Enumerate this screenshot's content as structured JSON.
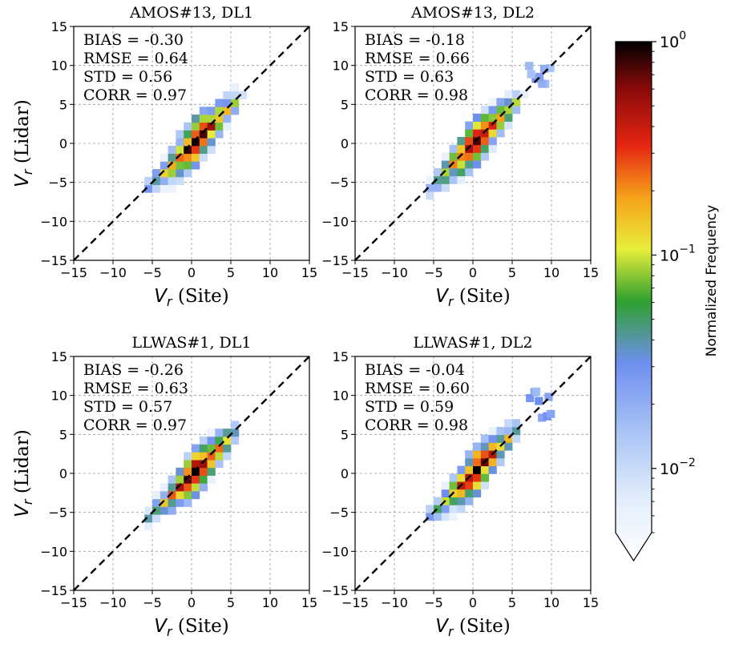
{
  "chart_data": [
    {
      "type": "heatmap",
      "title": "AMOS#13, DL1",
      "xlabel_var": "V",
      "xlabel_sub": "r",
      "xlabel_text": "(Site)",
      "ylabel_var": "V",
      "ylabel_sub": "r",
      "ylabel_text": "(Lidar)",
      "xlim": [
        -15,
        15
      ],
      "ylim": [
        -15,
        15
      ],
      "ticks": [
        -15,
        -10,
        -5,
        0,
        5,
        10,
        15
      ],
      "tick_labels": [
        "−15",
        "−10",
        "−5",
        "0",
        "5",
        "10",
        "15"
      ],
      "stats": [
        "BIAS = -0.30",
        "RMSE = 0.64",
        "STD = 0.56",
        "CORR = 0.97"
      ],
      "reference_line": "y = x",
      "density": {
        "x_range": [
          -6,
          7
        ],
        "bias": -0.3,
        "spread": 0.6
      }
    },
    {
      "type": "heatmap",
      "title": "AMOS#13, DL2",
      "xlabel_var": "V",
      "xlabel_sub": "r",
      "xlabel_text": "(Site)",
      "ylabel_var": "V",
      "ylabel_sub": "r",
      "ylabel_text": "(Lidar)",
      "xlim": [
        -15,
        15
      ],
      "ylim": [
        -15,
        15
      ],
      "ticks": [
        -15,
        -10,
        -5,
        0,
        5,
        10,
        15
      ],
      "tick_labels": [
        "−15",
        "−10",
        "−5",
        "0",
        "5",
        "10",
        "15"
      ],
      "stats": [
        "BIAS = -0.18",
        "RMSE = 0.66",
        "STD = 0.63",
        "CORR = 0.98"
      ],
      "reference_line": "y = x",
      "density": {
        "x_range": [
          -6,
          10
        ],
        "bias": -0.18,
        "spread": 0.65
      }
    },
    {
      "type": "heatmap",
      "title": "LLWAS#1, DL1",
      "xlabel_var": "V",
      "xlabel_sub": "r",
      "xlabel_text": "(Site)",
      "ylabel_var": "V",
      "ylabel_sub": "r",
      "ylabel_text": "(Lidar)",
      "xlim": [
        -15,
        15
      ],
      "ylim": [
        -15,
        15
      ],
      "ticks": [
        -15,
        -10,
        -5,
        0,
        5,
        10,
        15
      ],
      "tick_labels": [
        "−15",
        "−10",
        "−5",
        "0",
        "5",
        "10",
        "15"
      ],
      "stats": [
        "BIAS = -0.26",
        "RMSE = 0.63",
        "STD = 0.57",
        "CORR = 0.97"
      ],
      "reference_line": "y = x",
      "density": {
        "x_range": [
          -6,
          7
        ],
        "bias": -0.26,
        "spread": 0.6
      }
    },
    {
      "type": "heatmap",
      "title": "LLWAS#1, DL2",
      "xlabel_var": "V",
      "xlabel_sub": "r",
      "xlabel_text": "(Site)",
      "ylabel_var": "V",
      "ylabel_sub": "r",
      "ylabel_text": "(Lidar)",
      "xlim": [
        -15,
        15
      ],
      "ylim": [
        -15,
        15
      ],
      "ticks": [
        -15,
        -10,
        -5,
        0,
        5,
        10,
        15
      ],
      "tick_labels": [
        "−15",
        "−10",
        "−5",
        "0",
        "5",
        "10",
        "15"
      ],
      "stats": [
        "BIAS = -0.04",
        "RMSE = 0.60",
        "STD = 0.59",
        "CORR = 0.98"
      ],
      "reference_line": "y = x",
      "density": {
        "x_range": [
          -6,
          10
        ],
        "bias": -0.04,
        "spread": 0.6
      }
    }
  ],
  "colorbar": {
    "label": "Normalized Frequency",
    "scale": "log",
    "range": [
      0.005,
      1
    ],
    "ticks": [
      {
        "value": 1,
        "label": "10",
        "exp": "0"
      },
      {
        "value": 0.1,
        "label": "10",
        "exp": "−1"
      },
      {
        "value": 0.01,
        "label": "10",
        "exp": "−2"
      }
    ],
    "colors": [
      "#ffffff",
      "#e2edfb",
      "#a8c3f5",
      "#6f8ff0",
      "#3aa83a",
      "#e8ee3a",
      "#f6a21a",
      "#e52512",
      "#8a0a0a",
      "#000000"
    ]
  }
}
